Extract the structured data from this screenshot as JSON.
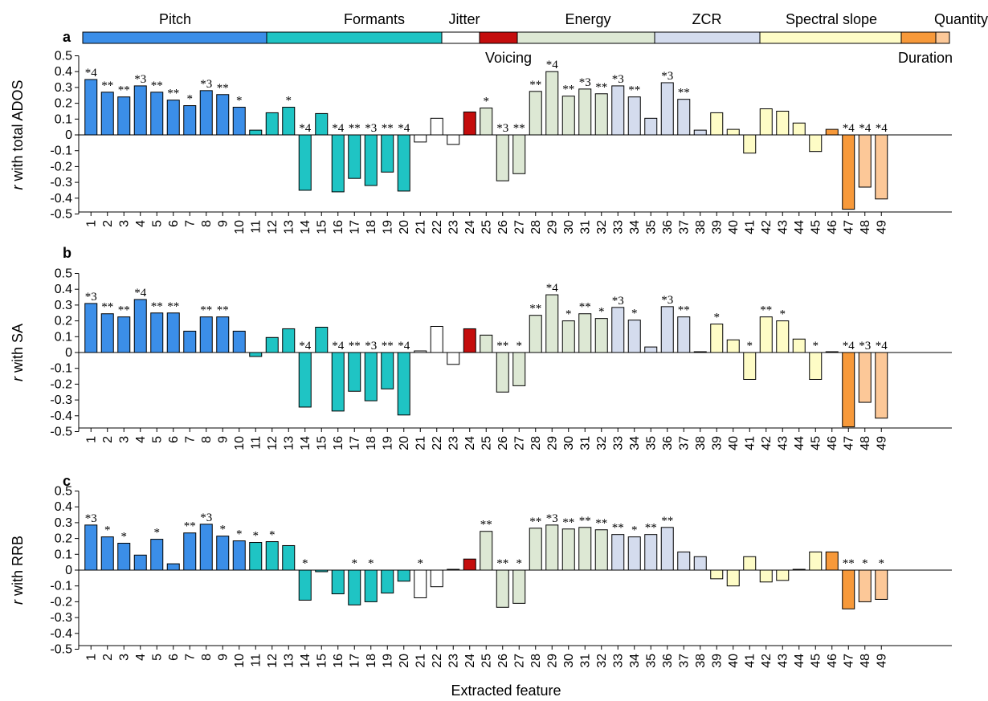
{
  "categories": [
    {
      "name": "Pitch",
      "features": [
        1,
        10
      ],
      "color": "#3b8ee8"
    },
    {
      "name": "Formants",
      "features": [
        11,
        20
      ],
      "color": "#1fc4c4"
    },
    {
      "name": "Jitter",
      "features": [
        21,
        23
      ],
      "color": "#ffffff"
    },
    {
      "name": "Voicing",
      "features": [
        24,
        24
      ],
      "color": "#c40d0d"
    },
    {
      "name": "Energy",
      "features": [
        25,
        32
      ],
      "color": "#dde8d4"
    },
    {
      "name": "ZCR",
      "features": [
        33,
        38
      ],
      "color": "#d4dcee"
    },
    {
      "name": "Spectral slope",
      "features": [
        39,
        45
      ],
      "color": "#fefcc6"
    },
    {
      "name": "Duration",
      "features": [
        46,
        47
      ],
      "color": "#f7993a"
    },
    {
      "name": "Quantity",
      "features": [
        48,
        49
      ],
      "color": "#fcc898"
    }
  ],
  "feature_colors": {
    "pitch": "#3b8ee8",
    "formants": "#1fc4c4",
    "jitter": "#ffffff",
    "voicing": "#c40d0d",
    "energy": "#dde8d4",
    "zcr": "#d4dcee",
    "slope": "#fefcc6",
    "duration": "#f7993a",
    "quantity": "#fcc898"
  },
  "chart_data": [
    {
      "panel": "a",
      "type": "bar",
      "ylabel_italic": "r",
      "ylabel_rest": " with total ADOS",
      "ylim": [
        -0.5,
        0.5
      ],
      "yticks": [
        "-0.5",
        "-0.4",
        "-0.3",
        "-0.2",
        "-0.1",
        "0",
        "0.1",
        "0.2",
        "0.3",
        "0.4",
        "0.5"
      ],
      "categories": [
        "1",
        "2",
        "3",
        "4",
        "5",
        "6",
        "7",
        "8",
        "9",
        "10",
        "11",
        "12",
        "13",
        "14",
        "15",
        "16",
        "17",
        "18",
        "19",
        "20",
        "21",
        "22",
        "23",
        "24",
        "25",
        "26",
        "27",
        "28",
        "29",
        "30",
        "31",
        "32",
        "33",
        "34",
        "35",
        "36",
        "37",
        "38",
        "39",
        "40",
        "41",
        "42",
        "43",
        "44",
        "45",
        "46",
        "47",
        "48",
        "49"
      ],
      "values": [
        0.35,
        0.27,
        0.24,
        0.31,
        0.27,
        0.22,
        0.185,
        0.28,
        0.255,
        0.175,
        0.03,
        0.14,
        0.175,
        -0.35,
        0.135,
        -0.36,
        -0.275,
        -0.32,
        -0.235,
        -0.355,
        -0.045,
        0.105,
        -0.06,
        0.145,
        0.17,
        -0.29,
        -0.245,
        0.275,
        0.4,
        0.245,
        0.29,
        0.26,
        0.31,
        0.24,
        0.105,
        0.33,
        0.225,
        0.03,
        0.14,
        0.035,
        -0.115,
        0.165,
        0.15,
        0.075,
        -0.105,
        0.035,
        -0.47,
        -0.33,
        -0.405
      ],
      "significance": [
        "*4",
        "**",
        "**",
        "*3",
        "**",
        "**",
        "*",
        "*3",
        "**",
        "*",
        "",
        "",
        "*",
        "*4",
        "",
        "*4",
        "**",
        "*3",
        "**",
        "*4",
        "",
        "",
        "",
        "",
        "*",
        "*3",
        "**",
        "**",
        "*4",
        "**",
        "*3",
        "**",
        "*3",
        "**",
        "",
        "*3",
        "**",
        "",
        "",
        "",
        "",
        "",
        "",
        "",
        "",
        "",
        "*4",
        "*4",
        "*4"
      ]
    },
    {
      "panel": "b",
      "type": "bar",
      "ylabel_italic": "r",
      "ylabel_rest": " with SA",
      "ylim": [
        -0.5,
        0.5
      ],
      "yticks": [
        "-0.5",
        "-0.4",
        "-0.3",
        "-0.2",
        "-0.1",
        "0",
        "0.1",
        "0.2",
        "0.3",
        "0.4",
        "0.5"
      ],
      "categories": [
        "1",
        "2",
        "3",
        "4",
        "5",
        "6",
        "7",
        "8",
        "9",
        "10",
        "11",
        "12",
        "13",
        "14",
        "15",
        "16",
        "17",
        "18",
        "19",
        "20",
        "21",
        "22",
        "23",
        "24",
        "25",
        "26",
        "27",
        "28",
        "29",
        "30",
        "31",
        "32",
        "33",
        "34",
        "35",
        "36",
        "37",
        "38",
        "39",
        "40",
        "41",
        "42",
        "43",
        "44",
        "45",
        "46",
        "47",
        "48",
        "49"
      ],
      "values": [
        0.31,
        0.245,
        0.225,
        0.335,
        0.25,
        0.25,
        0.135,
        0.225,
        0.225,
        0.135,
        -0.025,
        0.095,
        0.15,
        -0.345,
        0.16,
        -0.37,
        -0.245,
        -0.305,
        -0.23,
        -0.395,
        0.01,
        0.165,
        -0.075,
        0.15,
        0.11,
        -0.25,
        -0.21,
        0.235,
        0.365,
        0.2,
        0.245,
        0.215,
        0.285,
        0.205,
        0.035,
        0.29,
        0.225,
        0.005,
        0.18,
        0.08,
        -0.17,
        0.225,
        0.2,
        0.085,
        -0.17,
        0.005,
        -0.47,
        -0.315,
        -0.415
      ],
      "significance": [
        "*3",
        "**",
        "**",
        "*4",
        "**",
        "**",
        "",
        "**",
        "**",
        "",
        "",
        "",
        "",
        "*4",
        "",
        "*4",
        "**",
        "*3",
        "**",
        "*4",
        "",
        "",
        "",
        "",
        "",
        "**",
        "*",
        "**",
        "*4",
        "*",
        "**",
        "*",
        "*3",
        "*",
        "",
        "*3",
        "**",
        "",
        "*",
        "",
        "*",
        "**",
        "*",
        "",
        "*",
        "",
        "*4",
        "*3",
        "*4"
      ]
    },
    {
      "panel": "c",
      "type": "bar",
      "ylabel_italic": "r",
      "ylabel_rest": " with RRB",
      "xlabel": "Extracted feature",
      "ylim": [
        -0.5,
        0.5
      ],
      "yticks": [
        "-0.5",
        "-0.4",
        "-0.3",
        "-0.2",
        "-0.1",
        "0",
        "0.1",
        "0.2",
        "0.3",
        "0.4",
        "0.5"
      ],
      "categories": [
        "1",
        "2",
        "3",
        "4",
        "5",
        "6",
        "7",
        "8",
        "9",
        "10",
        "11",
        "12",
        "13",
        "14",
        "15",
        "16",
        "17",
        "18",
        "19",
        "20",
        "21",
        "22",
        "23",
        "24",
        "25",
        "26",
        "27",
        "28",
        "29",
        "30",
        "31",
        "32",
        "33",
        "34",
        "35",
        "36",
        "37",
        "38",
        "39",
        "40",
        "41",
        "42",
        "43",
        "44",
        "45",
        "46",
        "47",
        "48",
        "49"
      ],
      "values": [
        0.285,
        0.21,
        0.17,
        0.095,
        0.195,
        0.04,
        0.235,
        0.29,
        0.215,
        0.185,
        0.175,
        0.18,
        0.155,
        -0.19,
        -0.01,
        -0.15,
        -0.22,
        -0.2,
        -0.145,
        -0.07,
        -0.175,
        -0.105,
        0.005,
        0.07,
        0.245,
        -0.235,
        -0.21,
        0.265,
        0.285,
        0.26,
        0.27,
        0.255,
        0.225,
        0.21,
        0.225,
        0.27,
        0.115,
        0.085,
        -0.055,
        -0.1,
        0.085,
        -0.075,
        -0.065,
        0.005,
        0.115,
        0.115,
        -0.245,
        -0.2,
        -0.185
      ],
      "significance": [
        "*3",
        "*",
        "*",
        "",
        "*",
        "",
        "**",
        "*3",
        "*",
        "*",
        "*",
        "*",
        "",
        "*",
        "",
        "",
        "*",
        "*",
        "",
        "",
        "*",
        "",
        "",
        "",
        "**",
        "**",
        "*",
        "**",
        "*3",
        "**",
        "**",
        "**",
        "**",
        "*",
        "**",
        "**",
        "",
        "",
        "",
        "",
        "",
        "",
        "",
        "",
        "",
        "",
        "**",
        "*",
        "*"
      ]
    }
  ]
}
